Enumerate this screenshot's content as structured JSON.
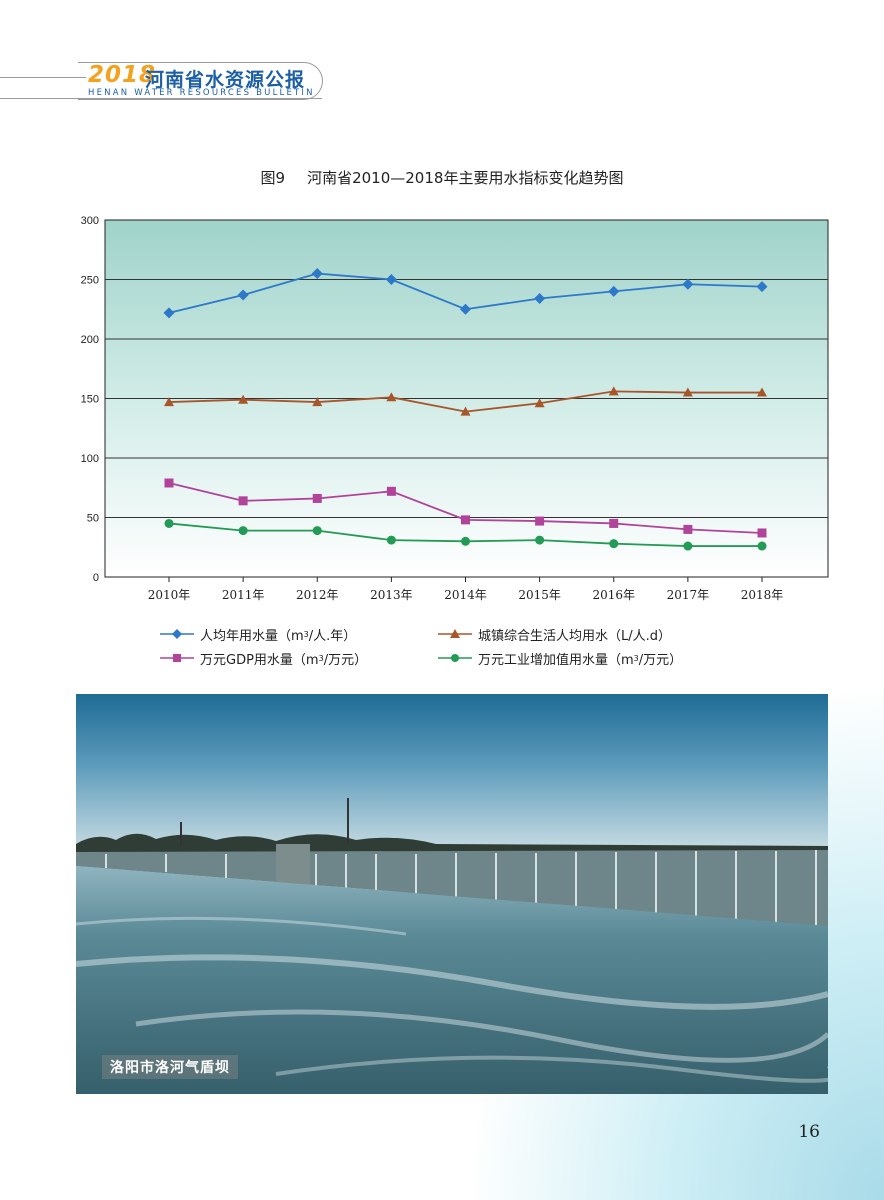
{
  "header": {
    "year": "2018",
    "title": "河南省水资源公报",
    "subtitle": "HENAN WATER RESOURCES BULLETIN"
  },
  "figure": {
    "number": "图9",
    "title": "河南省2010—2018年主要用水指标变化趋势图"
  },
  "chart_data": {
    "type": "line",
    "title": "河南省2010—2018年主要用水指标变化趋势图",
    "categories": [
      "2010年",
      "2011年",
      "2012年",
      "2013年",
      "2014年",
      "2015年",
      "2016年",
      "2017年",
      "2018年"
    ],
    "ylim": [
      0,
      300
    ],
    "yticks": [
      0,
      50,
      100,
      150,
      200,
      250,
      300
    ],
    "grid": true,
    "legend_position": "bottom",
    "series": [
      {
        "name": "人均年用水量（m³/人.年）",
        "color": "#2d78c8",
        "marker": "diamond",
        "values": [
          222,
          237,
          255,
          250,
          225,
          234,
          240,
          246,
          244
        ]
      },
      {
        "name": "城镇综合生活人均用水（L/人.d）",
        "color": "#a8552a",
        "marker": "triangle",
        "values": [
          147,
          149,
          147,
          151,
          139,
          146,
          156,
          155,
          155
        ]
      },
      {
        "name": "万元GDP用水量（m³/万元）",
        "color": "#b1439a",
        "marker": "square",
        "values": [
          79,
          64,
          66,
          72,
          48,
          47,
          45,
          40,
          37
        ]
      },
      {
        "name": "万元工业增加值用水量（m³/万元）",
        "color": "#239a55",
        "marker": "circle",
        "values": [
          45,
          39,
          39,
          31,
          30,
          31,
          28,
          26,
          26
        ]
      }
    ]
  },
  "legend": {
    "items": [
      {
        "pre": "人均年用水量（m",
        "sup": "3",
        "post": "/人.年）"
      },
      {
        "pre": "城镇综合生活人均用水（L/人.d）",
        "sup": "",
        "post": ""
      },
      {
        "pre": "万元GDP用水量（m",
        "sup": "3",
        "post": "/万元）"
      },
      {
        "pre": "万元工业增加值用水量（m",
        "sup": "3",
        "post": "/万元）"
      }
    ]
  },
  "photo": {
    "caption": "洛阳市洛河气盾坝"
  },
  "page_number": "16"
}
